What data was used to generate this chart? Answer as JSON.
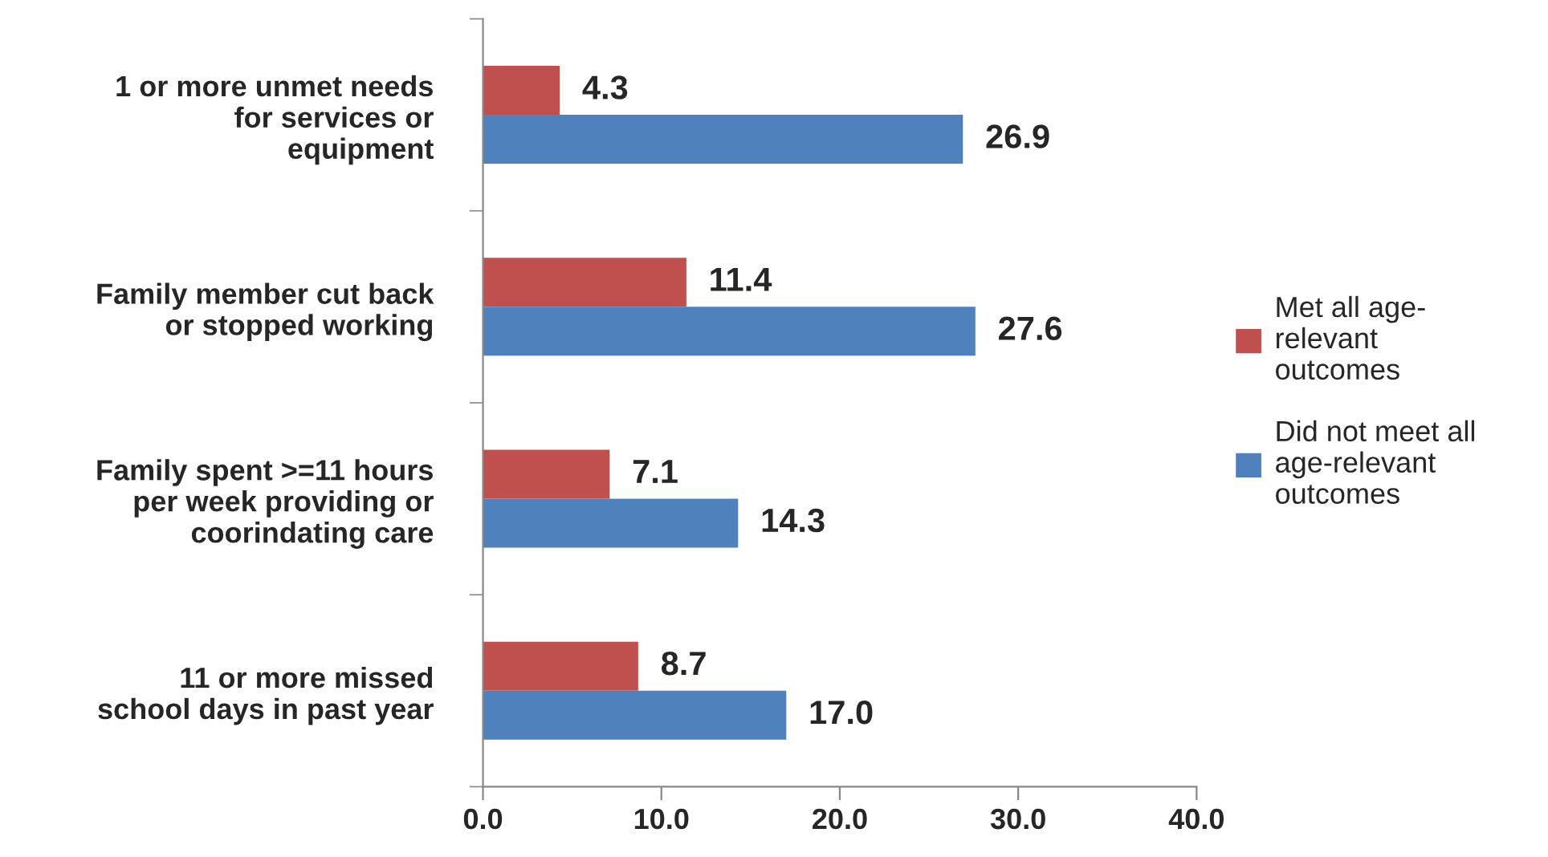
{
  "chart_data": {
    "type": "bar",
    "orientation": "horizontal",
    "categories": [
      "1 or more unmet needs\nfor services or\nequipment",
      "Family member cut back\nor stopped working",
      "Family spent >=11 hours\nper week providing or\ncoorindating care",
      "11 or more missed\nschool days in past year"
    ],
    "series": [
      {
        "name": "Met all age-\nrelevant\noutcomes",
        "color": "#c0504d",
        "values": [
          4.3,
          11.4,
          7.1,
          8.7
        ],
        "value_labels": [
          "4.3",
          "11.4",
          "7.1",
          "8.7"
        ]
      },
      {
        "name": "Did not meet all\nage-relevant\noutcomes",
        "color": "#4f81bd",
        "values": [
          26.9,
          27.6,
          14.3,
          17.0
        ],
        "value_labels": [
          "26.9",
          "27.6",
          "14.3",
          "17.0"
        ]
      }
    ],
    "xlim": [
      0,
      40
    ],
    "xticks": [
      {
        "value": 0,
        "label": "0.0"
      },
      {
        "value": 10,
        "label": "10.0"
      },
      {
        "value": 20,
        "label": "20.0"
      },
      {
        "value": 30,
        "label": "30.0"
      },
      {
        "value": 40,
        "label": "40.0"
      }
    ],
    "legend": "right",
    "grid": false
  }
}
